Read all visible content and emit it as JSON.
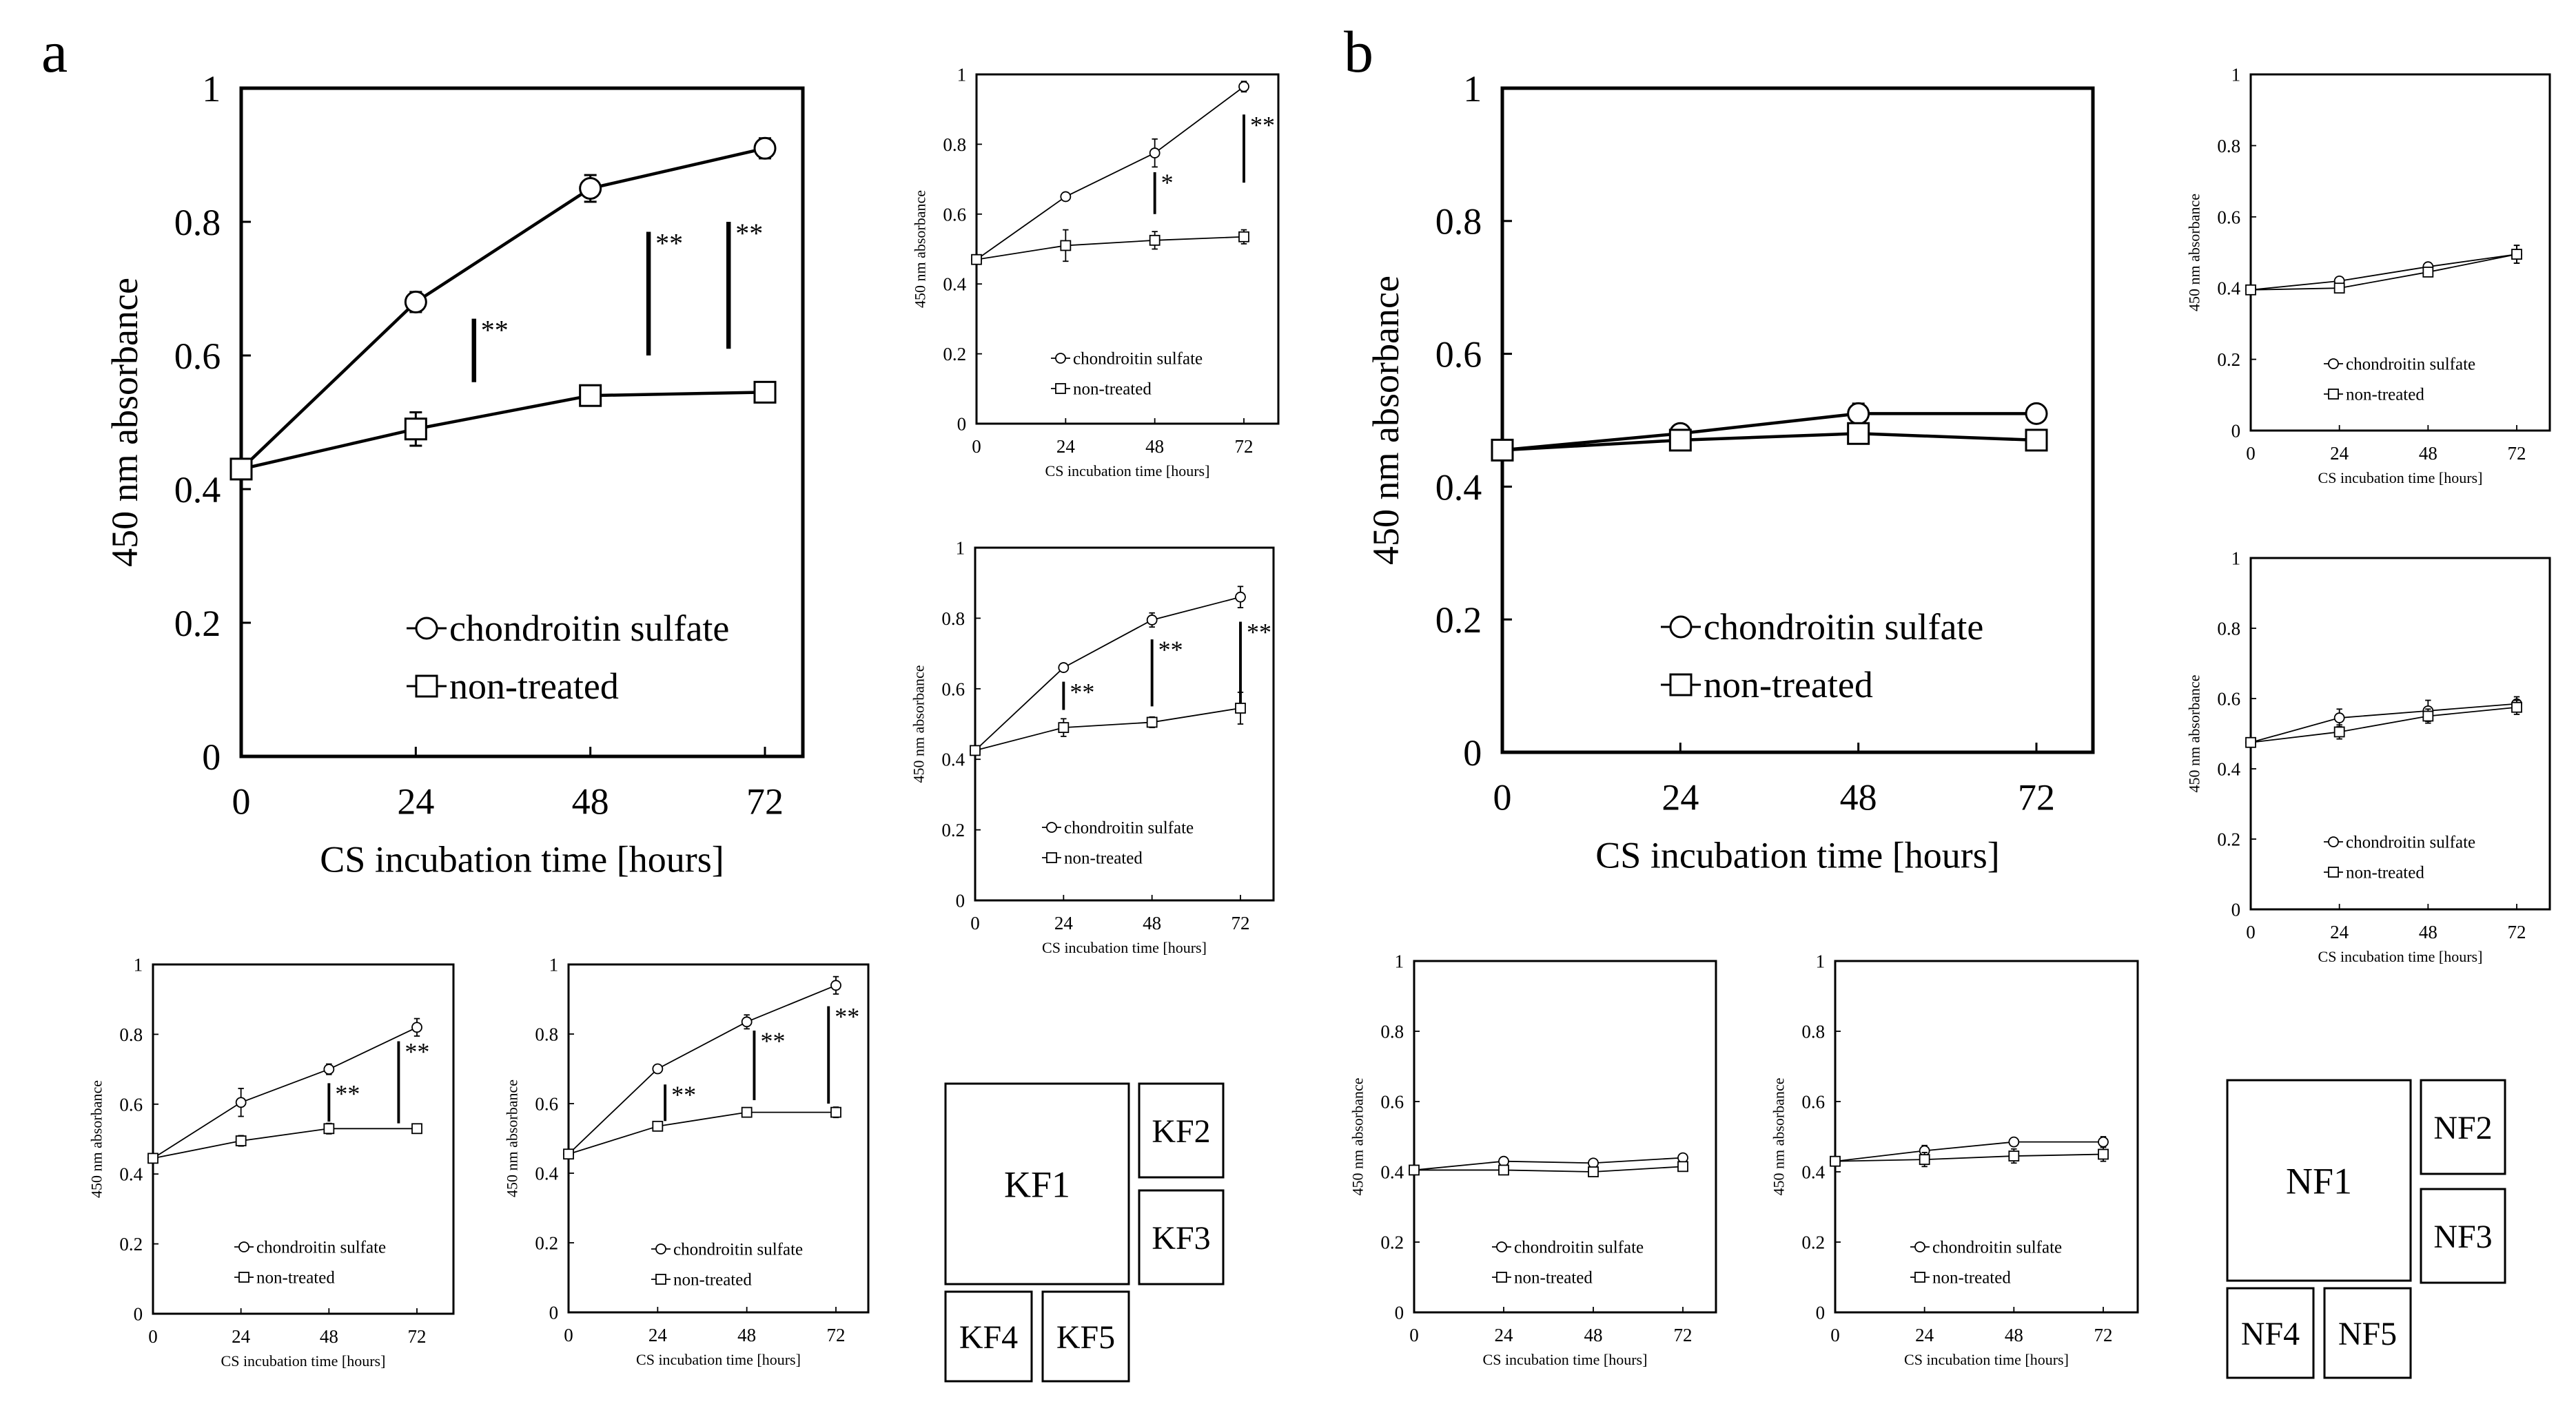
{
  "panel_labels": {
    "a": "a",
    "b": "b"
  },
  "legend_labels": {
    "cs": "chondroitin sulfate",
    "nt": "non-treated"
  },
  "xlabel": "CS incubation time [hours]",
  "ylabel": "450 nm absorbance",
  "layout_keys": {
    "a": [
      "KF1",
      "KF2",
      "KF3",
      "KF4",
      "KF5"
    ],
    "b": [
      "NF1",
      "NF2",
      "NF3",
      "NF4",
      "NF5"
    ]
  },
  "chart_data": [
    {
      "id": "KF1",
      "type": "line",
      "xlabel": "CS incubation time [hours]",
      "ylabel": "450 nm absorbance",
      "x": [
        0,
        24,
        48,
        72
      ],
      "xticks": [
        "0",
        "24",
        "48",
        "72"
      ],
      "yticks": [
        "0",
        "0.2",
        "0.4",
        "0.6",
        "0.8",
        "1"
      ],
      "ylim": [
        0,
        1
      ],
      "series": [
        {
          "name": "chondroitin sulfate",
          "marker": "circle",
          "values": [
            0.43,
            0.68,
            0.85,
            0.91
          ],
          "errors": [
            0.01,
            0.015,
            0.02,
            0.015
          ]
        },
        {
          "name": "non-treated",
          "marker": "square",
          "values": [
            0.43,
            0.49,
            0.54,
            0.545
          ],
          "errors": [
            0.01,
            0.025,
            0.015,
            0.01
          ]
        }
      ],
      "significance": [
        {
          "x": 32,
          "y1": 0.56,
          "y2": 0.655,
          "label": "**"
        },
        {
          "x": 56,
          "y1": 0.6,
          "y2": 0.785,
          "label": "**"
        },
        {
          "x": 67,
          "y1": 0.61,
          "y2": 0.8,
          "label": "**"
        }
      ]
    },
    {
      "id": "KF2",
      "type": "line",
      "xlabel": "CS incubation time [hours]",
      "ylabel": "450 nm absorbance",
      "x": [
        0,
        24,
        48,
        72
      ],
      "xticks": [
        "0",
        "24",
        "48",
        "72"
      ],
      "yticks": [
        "0",
        "0.2",
        "0.4",
        "0.6",
        "0.8",
        "1"
      ],
      "ylim": [
        0,
        1
      ],
      "series": [
        {
          "name": "chondroitin sulfate",
          "marker": "circle",
          "values": [
            0.47,
            0.65,
            0.775,
            0.965
          ],
          "errors": [
            0.01,
            0.01,
            0.04,
            0.015
          ]
        },
        {
          "name": "non-treated",
          "marker": "square",
          "values": [
            0.47,
            0.51,
            0.525,
            0.535
          ],
          "errors": [
            0.01,
            0.045,
            0.025,
            0.02
          ]
        }
      ],
      "significance": [
        {
          "x": 48,
          "y1": 0.6,
          "y2": 0.72,
          "label": "*"
        },
        {
          "x": 72,
          "y1": 0.69,
          "y2": 0.885,
          "label": "**"
        }
      ]
    },
    {
      "id": "KF3",
      "type": "line",
      "xlabel": "CS incubation time [hours]",
      "ylabel": "450 nm absorbance",
      "x": [
        0,
        24,
        48,
        72
      ],
      "xticks": [
        "0",
        "24",
        "48",
        "72"
      ],
      "yticks": [
        "0",
        "0.2",
        "0.4",
        "0.6",
        "0.8",
        "1"
      ],
      "ylim": [
        0,
        1
      ],
      "series": [
        {
          "name": "chondroitin sulfate",
          "marker": "circle",
          "values": [
            0.425,
            0.66,
            0.795,
            0.86
          ],
          "errors": [
            0.01,
            0.01,
            0.02,
            0.03
          ]
        },
        {
          "name": "non-treated",
          "marker": "square",
          "values": [
            0.425,
            0.49,
            0.505,
            0.545
          ],
          "errors": [
            0.01,
            0.025,
            0.015,
            0.045
          ]
        }
      ],
      "significance": [
        {
          "x": 24,
          "y1": 0.54,
          "y2": 0.62,
          "label": "**"
        },
        {
          "x": 48,
          "y1": 0.55,
          "y2": 0.74,
          "label": "**"
        },
        {
          "x": 72,
          "y1": 0.56,
          "y2": 0.79,
          "label": "**"
        }
      ]
    },
    {
      "id": "KF4",
      "type": "line",
      "xlabel": "CS incubation time [hours]",
      "ylabel": "450 nm absorbance",
      "x": [
        0,
        24,
        48,
        72
      ],
      "xticks": [
        "0",
        "24",
        "48",
        "72"
      ],
      "yticks": [
        "0",
        "0.2",
        "0.4",
        "0.6",
        "0.8",
        "1"
      ],
      "ylim": [
        0,
        1
      ],
      "series": [
        {
          "name": "chondroitin sulfate",
          "marker": "circle",
          "values": [
            0.445,
            0.605,
            0.7,
            0.82
          ],
          "errors": [
            0.01,
            0.04,
            0.015,
            0.025
          ]
        },
        {
          "name": "non-treated",
          "marker": "square",
          "values": [
            0.445,
            0.495,
            0.53,
            0.53
          ],
          "errors": [
            0.01,
            0.015,
            0.015,
            0.01
          ]
        }
      ],
      "significance": [
        {
          "x": 48,
          "y1": 0.55,
          "y2": 0.66,
          "label": "**"
        },
        {
          "x": 67,
          "y1": 0.545,
          "y2": 0.78,
          "label": "**"
        }
      ]
    },
    {
      "id": "KF5",
      "type": "line",
      "xlabel": "CS incubation time [hours]",
      "ylabel": "450 nm absorbance",
      "x": [
        0,
        24,
        48,
        72
      ],
      "xticks": [
        "0",
        "24",
        "48",
        "72"
      ],
      "yticks": [
        "0",
        "0.2",
        "0.4",
        "0.6",
        "0.8",
        "1"
      ],
      "ylim": [
        0,
        1
      ],
      "series": [
        {
          "name": "chondroitin sulfate",
          "marker": "circle",
          "values": [
            0.455,
            0.7,
            0.835,
            0.94
          ],
          "errors": [
            0.01,
            0.01,
            0.02,
            0.025
          ]
        },
        {
          "name": "non-treated",
          "marker": "square",
          "values": [
            0.455,
            0.535,
            0.575,
            0.575
          ],
          "errors": [
            0.01,
            0.01,
            0.01,
            0.015
          ]
        }
      ],
      "significance": [
        {
          "x": 26,
          "y1": 0.55,
          "y2": 0.655,
          "label": "**"
        },
        {
          "x": 50,
          "y1": 0.61,
          "y2": 0.81,
          "label": "**"
        },
        {
          "x": 70,
          "y1": 0.6,
          "y2": 0.88,
          "label": "**"
        }
      ]
    },
    {
      "id": "NF1",
      "type": "line",
      "xlabel": "CS incubation time [hours]",
      "ylabel": "450 nm absorbance",
      "x": [
        0,
        24,
        48,
        72
      ],
      "xticks": [
        "0",
        "24",
        "48",
        "72"
      ],
      "yticks": [
        "0",
        "0.2",
        "0.4",
        "0.6",
        "0.8",
        "1"
      ],
      "ylim": [
        0,
        1
      ],
      "series": [
        {
          "name": "chondroitin sulfate",
          "marker": "circle",
          "values": [
            0.455,
            0.48,
            0.51,
            0.51
          ],
          "errors": [
            0.01,
            0.01,
            0.015,
            0.01
          ]
        },
        {
          "name": "non-treated",
          "marker": "square",
          "values": [
            0.455,
            0.47,
            0.48,
            0.47
          ],
          "errors": [
            0.01,
            0.01,
            0.01,
            0.01
          ]
        }
      ],
      "significance": []
    },
    {
      "id": "NF2",
      "type": "line",
      "xlabel": "CS incubation time [hours]",
      "ylabel": "450 nm absorbance",
      "x": [
        0,
        24,
        48,
        72
      ],
      "xticks": [
        "0",
        "24",
        "48",
        "72"
      ],
      "yticks": [
        "0",
        "0.2",
        "0.4",
        "0.6",
        "0.8",
        "1"
      ],
      "ylim": [
        0,
        1
      ],
      "series": [
        {
          "name": "chondroitin sulfate",
          "marker": "circle",
          "values": [
            0.395,
            0.42,
            0.46,
            0.495
          ],
          "errors": [
            0.005,
            0.01,
            0.01,
            0.025
          ]
        },
        {
          "name": "non-treated",
          "marker": "square",
          "values": [
            0.395,
            0.4,
            0.445,
            0.495
          ],
          "errors": [
            0.005,
            0.01,
            0.01,
            0.025
          ]
        }
      ],
      "significance": []
    },
    {
      "id": "NF3",
      "type": "line",
      "xlabel": "CS incubation time [hours]",
      "ylabel": "450 nm absorbance",
      "x": [
        0,
        24,
        48,
        72
      ],
      "xticks": [
        "0",
        "24",
        "48",
        "72"
      ],
      "yticks": [
        "0",
        "0.2",
        "0.4",
        "0.6",
        "0.8",
        "1"
      ],
      "ylim": [
        0,
        1
      ],
      "series": [
        {
          "name": "chondroitin sulfate",
          "marker": "circle",
          "values": [
            0.475,
            0.545,
            0.565,
            0.585
          ],
          "errors": [
            0.01,
            0.025,
            0.03,
            0.02
          ]
        },
        {
          "name": "non-treated",
          "marker": "square",
          "values": [
            0.475,
            0.505,
            0.55,
            0.575
          ],
          "errors": [
            0.01,
            0.02,
            0.02,
            0.02
          ]
        }
      ],
      "significance": []
    },
    {
      "id": "NF4",
      "type": "line",
      "xlabel": "CS incubation time [hours]",
      "ylabel": "450 nm absorbance",
      "x": [
        0,
        24,
        48,
        72
      ],
      "xticks": [
        "0",
        "24",
        "48",
        "72"
      ],
      "yticks": [
        "0",
        "0.2",
        "0.4",
        "0.6",
        "0.8",
        "1"
      ],
      "ylim": [
        0,
        1
      ],
      "series": [
        {
          "name": "chondroitin sulfate",
          "marker": "circle",
          "values": [
            0.405,
            0.43,
            0.425,
            0.44
          ],
          "errors": [
            0.01,
            0.01,
            0.01,
            0.01
          ]
        },
        {
          "name": "non-treated",
          "marker": "square",
          "values": [
            0.405,
            0.405,
            0.4,
            0.415
          ],
          "errors": [
            0.01,
            0.01,
            0.01,
            0.01
          ]
        }
      ],
      "significance": []
    },
    {
      "id": "NF5",
      "type": "line",
      "xlabel": "CS incubation time [hours]",
      "ylabel": "450 nm absorbance",
      "x": [
        0,
        24,
        48,
        72
      ],
      "xticks": [
        "0",
        "24",
        "48",
        "72"
      ],
      "yticks": [
        "0",
        "0.2",
        "0.4",
        "0.6",
        "0.8",
        "1"
      ],
      "ylim": [
        0,
        1
      ],
      "series": [
        {
          "name": "chondroitin sulfate",
          "marker": "circle",
          "values": [
            0.43,
            0.46,
            0.485,
            0.485
          ],
          "errors": [
            0.01,
            0.015,
            0.01,
            0.015
          ]
        },
        {
          "name": "non-treated",
          "marker": "square",
          "values": [
            0.43,
            0.435,
            0.445,
            0.45
          ],
          "errors": [
            0.01,
            0.02,
            0.02,
            0.02
          ]
        }
      ],
      "significance": []
    }
  ]
}
